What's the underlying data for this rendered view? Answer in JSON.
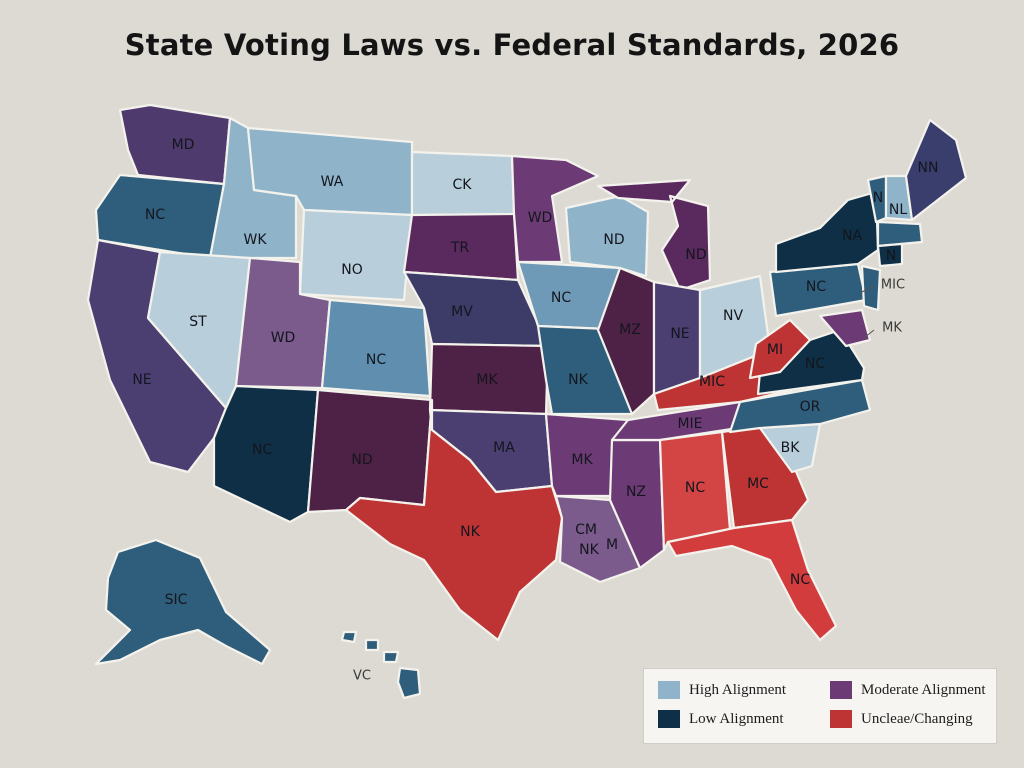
{
  "title": "State Voting Laws vs. Federal Standards, 2026",
  "colors": {
    "high": "#8fb3c9",
    "moderate": "#6c3b75",
    "low": "#0e2f45",
    "unclear": "#be3434",
    "mid_blue": "#2f5e7c",
    "navy_purple": "#3a3e6c",
    "deep_plum": "#4e2146",
    "pale_blue": "#b9cedb"
  },
  "legend": [
    {
      "label": "High Alignment",
      "color": "#8fb3c9"
    },
    {
      "label": "Moderate Alignment",
      "color": "#6c3b75"
    },
    {
      "label": "Low Alignment",
      "color": "#0e2f45"
    },
    {
      "label": "Uncleae/Changing",
      "color": "#be3434"
    }
  ],
  "states": [
    {
      "id": "wa",
      "label": "MD",
      "color": "#4f3a6e"
    },
    {
      "id": "or",
      "label": "NC",
      "color": "#2f5e7c"
    },
    {
      "id": "ca",
      "label": "NE",
      "color": "#4b3f72"
    },
    {
      "id": "id",
      "label": "WK",
      "color": "#8fb3c9"
    },
    {
      "id": "nv",
      "label": "ST",
      "color": "#b9cedb"
    },
    {
      "id": "mt",
      "label": "WA",
      "color": "#8fb3c9"
    },
    {
      "id": "wy",
      "label": "NO",
      "color": "#b9cedb"
    },
    {
      "id": "ut",
      "label": "WD",
      "color": "#7a5b8c"
    },
    {
      "id": "az",
      "label": "NC",
      "color": "#0e2f45"
    },
    {
      "id": "co",
      "label": "NC",
      "color": "#5f8eae"
    },
    {
      "id": "nm",
      "label": "ND",
      "color": "#4e2146"
    },
    {
      "id": "nd",
      "label": "CK",
      "color": "#b9cedb"
    },
    {
      "id": "sd",
      "label": "TR",
      "color": "#5a2a5e"
    },
    {
      "id": "ne",
      "label": "MV",
      "color": "#3d3c68"
    },
    {
      "id": "ks",
      "label": "MK",
      "color": "#4e2146"
    },
    {
      "id": "ok",
      "label": "MA",
      "color": "#4b3f72"
    },
    {
      "id": "tx",
      "label": "NK",
      "color": "#be3434"
    },
    {
      "id": "mn",
      "label": "WD",
      "color": "#6c3b75"
    },
    {
      "id": "ia",
      "label": "NC",
      "color": "#6f9ab7"
    },
    {
      "id": "mo",
      "label": "NK",
      "color": "#2f5e7c"
    },
    {
      "id": "ar",
      "label": "MK",
      "color": "#6c3b75"
    },
    {
      "id": "la",
      "label": "CM",
      "color": "#7a5b8c"
    },
    {
      "id": "wi",
      "label": "ND",
      "color": "#8fb3c9"
    },
    {
      "id": "il",
      "label": "MZ",
      "color": "#4e2146"
    },
    {
      "id": "ms",
      "label": "NZ",
      "color": "#6c3b75"
    },
    {
      "id": "mi",
      "label": "ND",
      "color": "#5a2a5e"
    },
    {
      "id": "in",
      "label": "NE",
      "color": "#4b3f72"
    },
    {
      "id": "oh",
      "label": "NV",
      "color": "#b9cedb"
    },
    {
      "id": "ky",
      "label": "MIC",
      "color": "#be3434"
    },
    {
      "id": "tn",
      "label": "MIE",
      "color": "#6c3b75"
    },
    {
      "id": "al",
      "label": "NC",
      "color": "#d34545"
    },
    {
      "id": "ga",
      "label": "MC",
      "color": "#be3434"
    },
    {
      "id": "fl",
      "label": "NC",
      "color": "#d33c3c"
    },
    {
      "id": "sc",
      "label": "BK",
      "color": "#b9cedb"
    },
    {
      "id": "nc",
      "label": "OR",
      "color": "#2f5e7c"
    },
    {
      "id": "va",
      "label": "NC",
      "color": "#0e2f45"
    },
    {
      "id": "wv",
      "label": "MI",
      "color": "#be3434"
    },
    {
      "id": "pa",
      "label": "NC",
      "color": "#2f5e7c"
    },
    {
      "id": "ny",
      "label": "NA",
      "color": "#0e2f45"
    },
    {
      "id": "vt",
      "label": "N",
      "color": "#2f5e7c"
    },
    {
      "id": "nh",
      "label": "NL",
      "color": "#8fb3c9"
    },
    {
      "id": "me",
      "label": "NN",
      "color": "#3a3e6c"
    },
    {
      "id": "ma",
      "label": "",
      "color": "#2f5e7c"
    },
    {
      "id": "ct",
      "label": "N",
      "color": "#0e2f45"
    },
    {
      "id": "nj",
      "label": "",
      "color": "#2f5e7c"
    },
    {
      "id": "md",
      "label": "",
      "color": "#6c3b75"
    },
    {
      "id": "ak",
      "label": "SIC",
      "color": "#2f5e7c"
    },
    {
      "id": "hi",
      "label": "",
      "color": "#2f5e7c"
    }
  ],
  "outside_labels": [
    {
      "id": "mic_ne",
      "text": "MIC"
    },
    {
      "id": "mk_ne",
      "text": "MK"
    },
    {
      "id": "nk_la",
      "text": "NK"
    },
    {
      "id": "m_la",
      "text": "M"
    },
    {
      "id": "vc_hi",
      "text": "VC"
    }
  ]
}
